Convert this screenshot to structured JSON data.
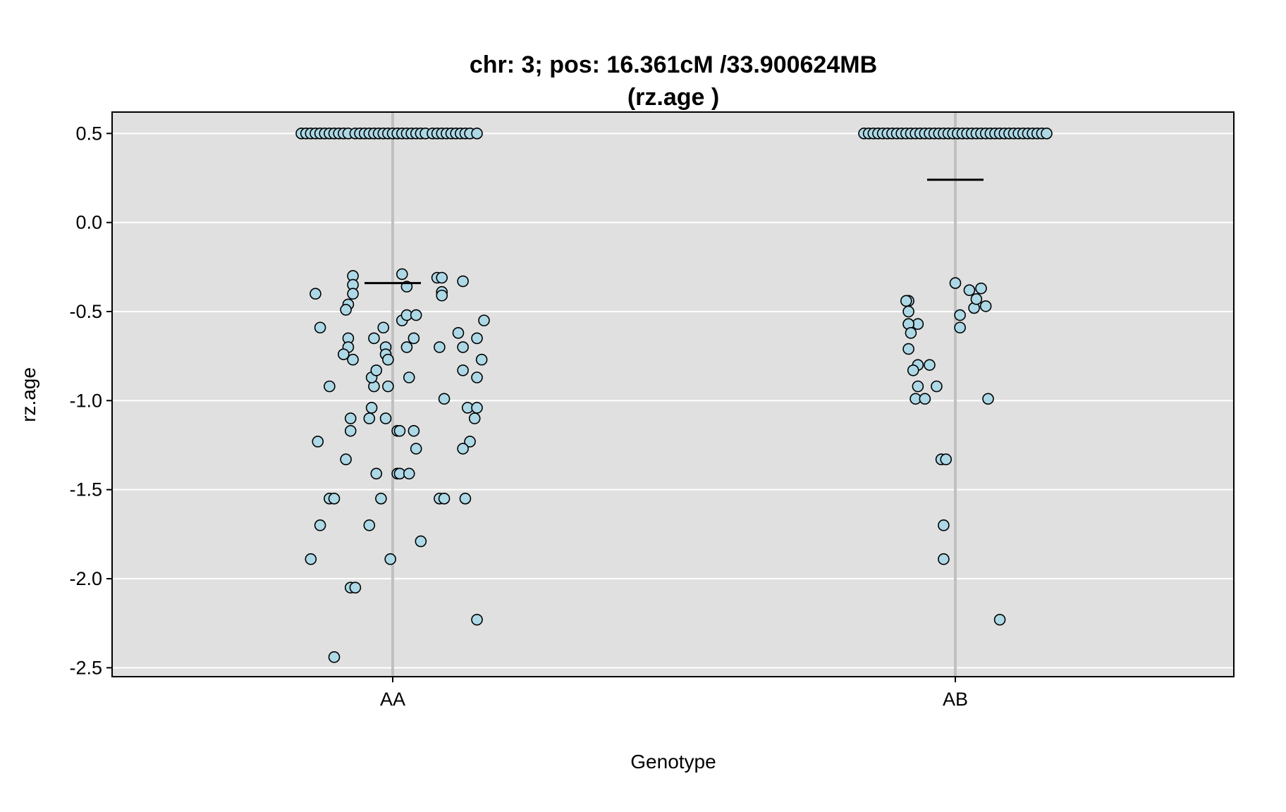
{
  "chart_data": {
    "type": "scatter",
    "title": "chr: 3; pos: 16.361cM /33.900624MB",
    "subtitle": "(rz.age )",
    "xlabel": "Genotype",
    "ylabel": "rz.age",
    "categories": [
      "AA",
      "AB"
    ],
    "ylim": [
      -2.55,
      0.62
    ],
    "yticks": [
      0.5,
      0.0,
      -0.5,
      -1.0,
      -1.5,
      -2.0,
      -2.5
    ],
    "ytick_labels": [
      "0.5",
      "0.0",
      "-0.5",
      "-1.0",
      "-1.5",
      "-2.0",
      "-2.5"
    ],
    "grid": true,
    "colors": {
      "panel": "#e0e0e0",
      "grid": "#ffffff",
      "center_line": "#c0c0c0",
      "point_fill": "#add8e6",
      "point_edge": "#000000",
      "mean_line": "#000000"
    },
    "means": [
      {
        "category": "AA",
        "value": -0.34
      },
      {
        "category": "AB",
        "value": 0.24
      }
    ],
    "series": [
      {
        "category": "AA",
        "points": [
          [
            -0.39,
            0.5
          ],
          [
            -0.37,
            0.5
          ],
          [
            -0.35,
            0.5
          ],
          [
            -0.33,
            0.5
          ],
          [
            -0.31,
            0.5
          ],
          [
            -0.29,
            0.5
          ],
          [
            -0.27,
            0.5
          ],
          [
            -0.25,
            0.5
          ],
          [
            -0.23,
            0.5
          ],
          [
            -0.21,
            0.5
          ],
          [
            -0.19,
            0.5
          ],
          [
            -0.16,
            0.5
          ],
          [
            -0.14,
            0.5
          ],
          [
            -0.12,
            0.5
          ],
          [
            -0.1,
            0.5
          ],
          [
            -0.08,
            0.5
          ],
          [
            -0.06,
            0.5
          ],
          [
            -0.04,
            0.5
          ],
          [
            -0.02,
            0.5
          ],
          [
            0.0,
            0.5
          ],
          [
            0.02,
            0.5
          ],
          [
            0.04,
            0.5
          ],
          [
            0.06,
            0.5
          ],
          [
            0.08,
            0.5
          ],
          [
            0.1,
            0.5
          ],
          [
            0.12,
            0.5
          ],
          [
            0.14,
            0.5
          ],
          [
            0.17,
            0.5
          ],
          [
            0.19,
            0.5
          ],
          [
            0.21,
            0.5
          ],
          [
            0.23,
            0.5
          ],
          [
            0.25,
            0.5
          ],
          [
            0.27,
            0.5
          ],
          [
            0.29,
            0.5
          ],
          [
            0.31,
            0.5
          ],
          [
            0.33,
            0.5
          ],
          [
            0.36,
            0.5
          ],
          [
            -0.17,
            -0.3
          ],
          [
            -0.17,
            -0.35
          ],
          [
            -0.17,
            -0.4
          ],
          [
            -0.33,
            -0.4
          ],
          [
            -0.19,
            -0.46
          ],
          [
            -0.2,
            -0.49
          ],
          [
            -0.31,
            -0.59
          ],
          [
            -0.19,
            -0.65
          ],
          [
            -0.19,
            -0.7
          ],
          [
            -0.21,
            -0.74
          ],
          [
            -0.17,
            -0.77
          ],
          [
            -0.27,
            -0.92
          ],
          [
            -0.08,
            -0.65
          ],
          [
            -0.08,
            -0.92
          ],
          [
            -0.09,
            -0.87
          ],
          [
            -0.07,
            -0.83
          ],
          [
            -0.09,
            -1.04
          ],
          [
            -0.1,
            -1.1
          ],
          [
            -0.18,
            -1.1
          ],
          [
            -0.18,
            -1.17
          ],
          [
            -0.32,
            -1.23
          ],
          [
            -0.2,
            -1.33
          ],
          [
            -0.07,
            -1.41
          ],
          [
            -0.27,
            -1.55
          ],
          [
            -0.25,
            -1.55
          ],
          [
            -0.31,
            -1.7
          ],
          [
            -0.1,
            -1.7
          ],
          [
            -0.35,
            -1.89
          ],
          [
            -0.18,
            -2.05
          ],
          [
            -0.16,
            -2.05
          ],
          [
            -0.25,
            -2.44
          ],
          [
            0.04,
            -0.29
          ],
          [
            0.04,
            -0.55
          ],
          [
            0.06,
            -0.36
          ],
          [
            0.06,
            -0.52
          ],
          [
            0.1,
            -0.52
          ],
          [
            0.09,
            -0.65
          ],
          [
            0.06,
            -0.7
          ],
          [
            0.07,
            -0.87
          ],
          [
            -0.04,
            -0.59
          ],
          [
            -0.03,
            -0.7
          ],
          [
            -0.03,
            -0.74
          ],
          [
            -0.02,
            -0.77
          ],
          [
            -0.02,
            -0.92
          ],
          [
            -0.03,
            -1.1
          ],
          [
            0.02,
            -1.17
          ],
          [
            0.03,
            -1.17
          ],
          [
            0.09,
            -1.17
          ],
          [
            0.1,
            -1.27
          ],
          [
            0.02,
            -1.41
          ],
          [
            0.03,
            -1.41
          ],
          [
            0.07,
            -1.41
          ],
          [
            -0.05,
            -1.55
          ],
          [
            0.12,
            -1.79
          ],
          [
            -0.01,
            -1.89
          ],
          [
            0.19,
            -0.31
          ],
          [
            0.21,
            -0.31
          ],
          [
            0.21,
            -0.39
          ],
          [
            0.21,
            -0.41
          ],
          [
            0.3,
            -0.33
          ],
          [
            0.39,
            -0.55
          ],
          [
            0.28,
            -0.62
          ],
          [
            0.36,
            -0.65
          ],
          [
            0.2,
            -0.7
          ],
          [
            0.3,
            -0.7
          ],
          [
            0.38,
            -0.77
          ],
          [
            0.3,
            -0.83
          ],
          [
            0.36,
            -0.87
          ],
          [
            0.22,
            -0.99
          ],
          [
            0.32,
            -1.04
          ],
          [
            0.36,
            -1.04
          ],
          [
            0.35,
            -1.1
          ],
          [
            0.33,
            -1.23
          ],
          [
            0.3,
            -1.27
          ],
          [
            0.2,
            -1.55
          ],
          [
            0.22,
            -1.55
          ],
          [
            0.31,
            -1.55
          ],
          [
            0.36,
            -2.23
          ]
        ]
      },
      {
        "category": "AB",
        "points": [
          [
            -0.39,
            0.5
          ],
          [
            -0.37,
            0.5
          ],
          [
            -0.35,
            0.5
          ],
          [
            -0.33,
            0.5
          ],
          [
            -0.31,
            0.5
          ],
          [
            -0.29,
            0.5
          ],
          [
            -0.27,
            0.5
          ],
          [
            -0.25,
            0.5
          ],
          [
            -0.23,
            0.5
          ],
          [
            -0.21,
            0.5
          ],
          [
            -0.19,
            0.5
          ],
          [
            -0.17,
            0.5
          ],
          [
            -0.15,
            0.5
          ],
          [
            -0.13,
            0.5
          ],
          [
            -0.11,
            0.5
          ],
          [
            -0.09,
            0.5
          ],
          [
            -0.07,
            0.5
          ],
          [
            -0.05,
            0.5
          ],
          [
            -0.03,
            0.5
          ],
          [
            -0.01,
            0.5
          ],
          [
            0.01,
            0.5
          ],
          [
            0.03,
            0.5
          ],
          [
            0.05,
            0.5
          ],
          [
            0.07,
            0.5
          ],
          [
            0.09,
            0.5
          ],
          [
            0.11,
            0.5
          ],
          [
            0.13,
            0.5
          ],
          [
            0.15,
            0.5
          ],
          [
            0.17,
            0.5
          ],
          [
            0.19,
            0.5
          ],
          [
            0.21,
            0.5
          ],
          [
            0.23,
            0.5
          ],
          [
            0.25,
            0.5
          ],
          [
            0.27,
            0.5
          ],
          [
            0.29,
            0.5
          ],
          [
            0.31,
            0.5
          ],
          [
            0.33,
            0.5
          ],
          [
            0.35,
            0.5
          ],
          [
            0.37,
            0.5
          ],
          [
            0.39,
            0.5
          ],
          [
            -0.2,
            -0.44
          ],
          [
            -0.21,
            -0.44
          ],
          [
            -0.16,
            -0.8
          ],
          [
            -0.16,
            -0.57
          ],
          [
            -0.2,
            -0.57
          ],
          [
            -0.2,
            -0.71
          ],
          [
            -0.2,
            -0.57
          ],
          [
            -0.2,
            -0.5
          ],
          [
            -0.19,
            -0.62
          ],
          [
            -0.18,
            -0.83
          ],
          [
            -0.16,
            -0.92
          ],
          [
            -0.17,
            -0.99
          ],
          [
            -0.13,
            -0.99
          ],
          [
            -0.11,
            -0.8
          ],
          [
            -0.08,
            -0.92
          ],
          [
            -0.06,
            -1.33
          ],
          [
            -0.04,
            -1.33
          ],
          [
            -0.05,
            -1.7
          ],
          [
            -0.05,
            -1.89
          ],
          [
            0.0,
            -0.34
          ],
          [
            0.02,
            -0.52
          ],
          [
            0.02,
            -0.59
          ],
          [
            0.06,
            -0.38
          ],
          [
            0.08,
            -0.48
          ],
          [
            0.09,
            -0.43
          ],
          [
            0.11,
            -0.37
          ],
          [
            0.13,
            -0.47
          ],
          [
            0.14,
            -0.99
          ],
          [
            0.19,
            -2.23
          ]
        ]
      }
    ]
  }
}
